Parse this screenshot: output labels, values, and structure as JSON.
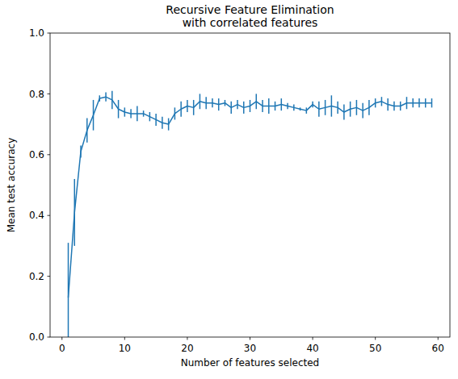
{
  "chart_data": {
    "type": "line",
    "title": "Recursive Feature Elimination\nwith correlated features",
    "x_label": "Number of features selected",
    "y_label": "Mean test accuracy",
    "color": "#1f77b4",
    "x": [
      1,
      2,
      3,
      4,
      5,
      6,
      7,
      8,
      9,
      10,
      11,
      12,
      13,
      14,
      15,
      16,
      17,
      18,
      19,
      20,
      21,
      22,
      23,
      24,
      25,
      26,
      27,
      28,
      29,
      30,
      31,
      32,
      33,
      34,
      35,
      36,
      37,
      38,
      39,
      40,
      41,
      42,
      43,
      44,
      45,
      46,
      47,
      48,
      49,
      50,
      51,
      52,
      53,
      54,
      55,
      56,
      57,
      58,
      59
    ],
    "values": [
      0.13,
      0.41,
      0.61,
      0.68,
      0.73,
      0.785,
      0.79,
      0.78,
      0.75,
      0.74,
      0.735,
      0.735,
      0.735,
      0.725,
      0.715,
      0.705,
      0.7,
      0.735,
      0.75,
      0.76,
      0.755,
      0.775,
      0.77,
      0.77,
      0.765,
      0.77,
      0.755,
      0.765,
      0.755,
      0.76,
      0.775,
      0.76,
      0.76,
      0.76,
      0.765,
      0.76,
      0.755,
      0.75,
      0.745,
      0.765,
      0.75,
      0.755,
      0.76,
      0.755,
      0.74,
      0.75,
      0.755,
      0.745,
      0.755,
      0.77,
      0.775,
      0.765,
      0.76,
      0.76,
      0.77,
      0.77,
      0.77,
      0.77,
      0.77
    ],
    "errors": [
      0.18,
      0.11,
      0.02,
      0.04,
      0.05,
      0.01,
      0.015,
      0.03,
      0.03,
      0.015,
      0.015,
      0.025,
      0.01,
      0.015,
      0.02,
      0.02,
      0.02,
      0.02,
      0.025,
      0.02,
      0.025,
      0.025,
      0.02,
      0.015,
      0.02,
      0.01,
      0.02,
      0.015,
      0.02,
      0.02,
      0.025,
      0.02,
      0.025,
      0.015,
      0.02,
      0.01,
      0.01,
      0.005,
      0.01,
      0.01,
      0.025,
      0.025,
      0.035,
      0.02,
      0.025,
      0.025,
      0.025,
      0.025,
      0.025,
      0.015,
      0.015,
      0.02,
      0.015,
      0.015,
      0.02,
      0.015,
      0.015,
      0.015,
      0.015
    ],
    "xlim": [
      -1.9,
      61.9
    ],
    "ylim": [
      0,
      1
    ],
    "xticks": [
      0,
      10,
      20,
      30,
      40,
      50,
      60
    ],
    "yticks": [
      {
        "value": 0,
        "label": "0.0"
      },
      0.2,
      0.4,
      0.6,
      0.8,
      {
        "value": 1,
        "label": "1.0"
      }
    ],
    "grid": false
  }
}
